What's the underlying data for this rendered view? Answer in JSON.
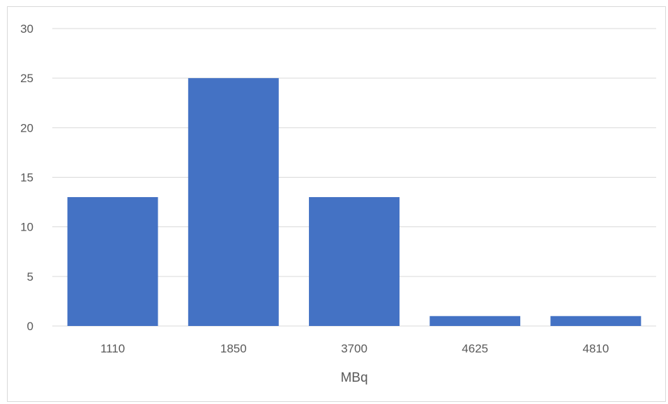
{
  "chart_data": {
    "type": "bar",
    "categories": [
      "1110",
      "1850",
      "3700",
      "4625",
      "4810"
    ],
    "values": [
      13,
      25,
      13,
      1,
      1
    ],
    "title": "",
    "xlabel": "MBq",
    "ylabel": "",
    "ylim": [
      0,
      30
    ],
    "yticks": [
      0,
      5,
      10,
      15,
      20,
      25,
      30
    ],
    "grid": true,
    "legend": "none",
    "bar_color": "#4472C4",
    "grid_color": "#d9d9d9",
    "text_color": "#595959"
  }
}
